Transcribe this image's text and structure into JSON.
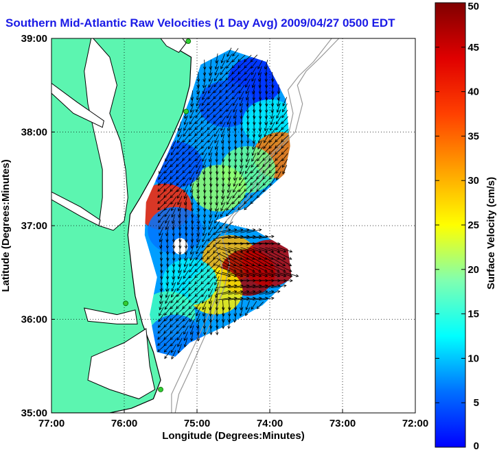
{
  "title": "Southern Mid-Atlantic Raw Velocities (1 Day Avg) 2009/04/27 0500 EDT",
  "axes": {
    "xlabel": "Longitude (Degrees:Minutes)",
    "ylabel": "Latitude (Degrees:Minutes)",
    "xticks": [
      "77:00",
      "76:00",
      "75:00",
      "74:00",
      "73:00",
      "72:00"
    ],
    "yticks": [
      "39:00",
      "38:00",
      "37:00",
      "36:00",
      "35:00"
    ],
    "xlim": [
      -77,
      -72
    ],
    "ylim": [
      35,
      39
    ],
    "grid": "dotted"
  },
  "colorbar": {
    "label": "Surface Velocity (cm/s)",
    "ticks": [
      "0",
      "5",
      "10",
      "15",
      "20",
      "25",
      "30",
      "35",
      "40",
      "45",
      "50"
    ],
    "range": [
      0,
      50
    ],
    "colormap": "jet"
  },
  "colors": {
    "land": "#5cf5b0",
    "coast": "#000000",
    "title": "#1a1ae6",
    "bathymetry": "#999999",
    "station": "#33cc33"
  },
  "stations": [
    {
      "lon": -75.12,
      "lat": 38.97
    },
    {
      "lon": -75.15,
      "lat": 38.22
    },
    {
      "lon": -75.98,
      "lat": 36.17
    },
    {
      "lon": -75.5,
      "lat": 35.25
    }
  ],
  "chart_data": {
    "type": "heatmap",
    "title": "Southern Mid-Atlantic Raw Velocities (1 Day Avg) 2009/04/27 0500 EDT",
    "xlabel": "Longitude (Degrees:Minutes)",
    "ylabel": "Latitude (Degrees:Minutes)",
    "value_label": "Surface Velocity (cm/s)",
    "xlim": [
      -77,
      -72
    ],
    "ylim": [
      35,
      39
    ],
    "vlim": [
      0,
      50
    ],
    "regions": [
      {
        "lon": -74.2,
        "lat": 38.55,
        "speed": 8
      },
      {
        "lon": -74.6,
        "lat": 38.3,
        "speed": 10
      },
      {
        "lon": -74.0,
        "lat": 38.1,
        "speed": 18
      },
      {
        "lon": -73.85,
        "lat": 37.75,
        "speed": 38
      },
      {
        "lon": -74.3,
        "lat": 37.6,
        "speed": 24
      },
      {
        "lon": -74.7,
        "lat": 37.4,
        "speed": 26
      },
      {
        "lon": -75.3,
        "lat": 37.65,
        "speed": 10
      },
      {
        "lon": -75.45,
        "lat": 37.2,
        "speed": 42
      },
      {
        "lon": -75.3,
        "lat": 36.95,
        "speed": 12
      },
      {
        "lon": -74.55,
        "lat": 36.65,
        "speed": 35
      },
      {
        "lon": -74.3,
        "lat": 36.5,
        "speed": 48
      },
      {
        "lon": -74.0,
        "lat": 36.6,
        "speed": 47
      },
      {
        "lon": -74.75,
        "lat": 36.3,
        "speed": 32
      },
      {
        "lon": -75.1,
        "lat": 36.4,
        "speed": 18
      },
      {
        "lon": -75.4,
        "lat": 36.05,
        "speed": 22
      },
      {
        "lon": -75.3,
        "lat": 35.8,
        "speed": 12
      }
    ],
    "vector_field": {
      "dominant_direction": "south-southwest",
      "units": "cm/s"
    }
  }
}
